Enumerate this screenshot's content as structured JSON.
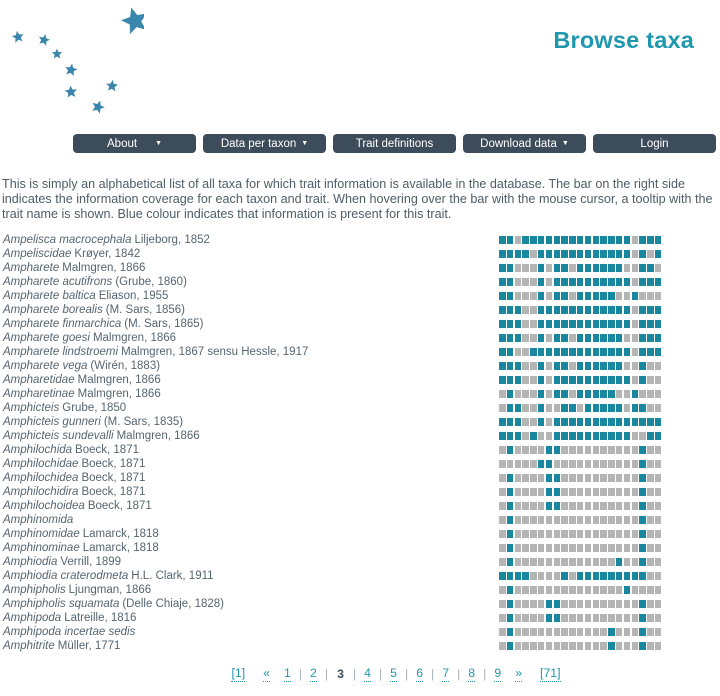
{
  "colors": {
    "accent": "#2097ac",
    "star": "#3a86ac",
    "nav_background": "#3d4c5a",
    "body_text": "#4e5d66",
    "trait_present": "#19879e",
    "trait_absent": "#b5b5b5"
  },
  "header": {
    "title": "Browse taxa"
  },
  "nav": {
    "items": [
      {
        "label": "About",
        "has_dropdown": true
      },
      {
        "label": "Data per taxon",
        "has_dropdown": true
      },
      {
        "label": "Trait definitions",
        "has_dropdown": false
      },
      {
        "label": "Download data",
        "has_dropdown": true
      },
      {
        "label": "Login",
        "has_dropdown": false
      }
    ]
  },
  "intro": {
    "text": "This is simply an alphabetical list of all taxa for which trait information is available in the database. The bar on the right side indicates the information coverage for each taxon and trait. When hovering over the bar with the mouse cursor, a tooltip with the trait name is shown. Blue colour indicates that information is present for this trait."
  },
  "taxa": {
    "bar_cells": 21,
    "rows": [
      {
        "name": "Ampelisca macrocephala",
        "authority": "Liljeborg, 1852",
        "bar": "TTGTTTTTTTTTTTTTTGTTT"
      },
      {
        "name": "Ampeliscidae",
        "authority": "Krøyer, 1842",
        "bar": "TTTTGTTTTTTTTTTTTGTGT"
      },
      {
        "name": "Ampharete",
        "authority": "Malmgren, 1866",
        "bar": "TTGGGTGTTGTTTTTTGGTTG"
      },
      {
        "name": "Ampharete acutifrons",
        "authority": "(Grube, 1860)",
        "bar": "TTGGGTGTTTTTTTTTTGTTT"
      },
      {
        "name": "Ampharete baltica",
        "authority": "Eliason, 1955",
        "bar": "TTGGGTGTTGTTTTTGGTGGG"
      },
      {
        "name": "Ampharete borealis",
        "authority": "(M. Sars, 1856)",
        "bar": "TTTGGTTTTTTTTTTTTGTTT"
      },
      {
        "name": "Ampharete finmarchica",
        "authority": "(M. Sars, 1865)",
        "bar": "TTTGGTTTTTTTTTTTTGTTT"
      },
      {
        "name": "Ampharete goesi",
        "authority": "Malmgren, 1866",
        "bar": "TTTGGTGTTGTTTTTTGGTTT"
      },
      {
        "name": "Ampharete lindstroemi",
        "authority": "Malmgren, 1867 sensu Hessle, 1917",
        "bar": "TTGGTTTTTTTTTTTTTGTTT"
      },
      {
        "name": "Ampharete vega",
        "authority": "(Wirén, 1883)",
        "bar": "TTTGGTGTTGTTTTTTGGTGG"
      },
      {
        "name": "Ampharetidae",
        "authority": "Malmgren, 1866",
        "bar": "TTTGGTGTTTTTTTTTTGTGG"
      },
      {
        "name": "Ampharetinae",
        "authority": "Malmgren, 1866",
        "bar": "GTGGGTGTTGTTTTTGGTGGG"
      },
      {
        "name": "Amphicteis",
        "authority": "Grube, 1850",
        "bar": "GTTGGTGGTTGTTTTTGTTGG"
      },
      {
        "name": "Amphicteis gunneri",
        "authority": "(M. Sars, 1835)",
        "bar": "TTTGGTGTTTTTTTTTTTTTT"
      },
      {
        "name": "Amphicteis sundevalli",
        "authority": "Malmgren, 1866",
        "bar": "TTTGTGGTTTTTTTTTTGGTT"
      },
      {
        "name": "Amphilochida",
        "authority": "Boeck, 1871",
        "bar": "GTGGGGTTGGGGGGGGGGTGG"
      },
      {
        "name": "Amphilochidae",
        "authority": "Boeck, 1871",
        "bar": "GGGGGTTGGGGGGGGGGGTGG"
      },
      {
        "name": "Amphilochidea",
        "authority": "Boeck, 1871",
        "bar": "GTGGGGTTGGGGGGGGGGTGG"
      },
      {
        "name": "Amphilochidira",
        "authority": "Boeck, 1871",
        "bar": "GTGGGGTTGGGGGGGGGGTGG"
      },
      {
        "name": "Amphilochoidea",
        "authority": "Boeck, 1871",
        "bar": "GTGGGGTTGGGGGGGGGGTGG"
      },
      {
        "name": "Amphinomida",
        "authority": "",
        "bar": "GTGGGGGGGGGGGGGGGGTGG"
      },
      {
        "name": "Amphinomidae",
        "authority": "Lamarck, 1818",
        "bar": "GTGGGGGGGGGGGGGGGGTGG"
      },
      {
        "name": "Amphinominae",
        "authority": "Lamarck, 1818",
        "bar": "GTGGGGGGGGGGGGGGGGTGG"
      },
      {
        "name": "Amphiodia",
        "authority": "Verrill, 1899",
        "bar": "GTGGGGGGGGGGGGGTGGTGG"
      },
      {
        "name": "Amphiodia craterodmeta",
        "authority": "H.L. Clark, 1911",
        "bar": "TTTTGGGGTGTTTTTTTTTGG"
      },
      {
        "name": "Amphipholis",
        "authority": "Ljungman, 1866",
        "bar": "GTGGGGGGGGGGGGGGTGGGG"
      },
      {
        "name": "Amphipholis squamata",
        "authority": "(Delle Chiaje, 1828)",
        "bar": "GTGGGGTTGGGGGGGGGGTGG"
      },
      {
        "name": "Amphipoda",
        "authority": "Latreille, 1816",
        "bar": "GTGGGGTTGGGGGGGGGGTGG"
      },
      {
        "name": "Amphipoda incertae sedis",
        "authority": "",
        "bar": "GTGGGGGGGGGGGGTGGGTGG"
      },
      {
        "name": "Amphitrite",
        "authority": "Müller, 1771",
        "bar": "GTGGGGGGGGGGGGTGGGTGG"
      }
    ]
  },
  "pagination": {
    "items": [
      {
        "label": "[1]",
        "type": "first"
      },
      {
        "label": "«",
        "type": "prev"
      },
      {
        "label": "1",
        "type": "page"
      },
      {
        "label": "2",
        "type": "page"
      },
      {
        "label": "3",
        "type": "current"
      },
      {
        "label": "4",
        "type": "page"
      },
      {
        "label": "5",
        "type": "page"
      },
      {
        "label": "6",
        "type": "page"
      },
      {
        "label": "7",
        "type": "page"
      },
      {
        "label": "8",
        "type": "page"
      },
      {
        "label": "9",
        "type": "page"
      },
      {
        "label": "»",
        "type": "next"
      },
      {
        "label": "[71]",
        "type": "last"
      }
    ],
    "separator": "|"
  }
}
